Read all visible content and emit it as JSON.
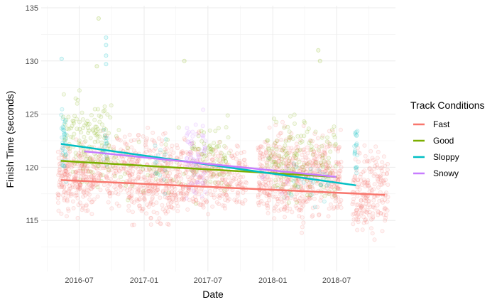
{
  "chart_data": {
    "type": "scatter",
    "title": "",
    "xlabel": "Date",
    "ylabel": "Finish Time (seconds)",
    "x_type": "date",
    "xlim": [
      "2016-03-15",
      "2018-12-15"
    ],
    "ylim": [
      110.2,
      135.2
    ],
    "x_ticks": [
      {
        "value": "2016-07-01",
        "label": "2016-07"
      },
      {
        "value": "2017-01-01",
        "label": "2017-01"
      },
      {
        "value": "2017-07-01",
        "label": "2017-07"
      },
      {
        "value": "2018-01-01",
        "label": "2018-01"
      },
      {
        "value": "2018-07-01",
        "label": "2018-07"
      }
    ],
    "y_ticks": [
      115,
      120,
      125,
      130,
      135
    ],
    "grid": true,
    "legend": {
      "title": "Track Conditions",
      "position": "right"
    },
    "series": [
      {
        "name": "Fast",
        "color": "#F8766D",
        "trend": {
          "x": [
            "2016-05-10",
            "2018-11-15"
          ],
          "y": [
            118.8,
            117.4
          ]
        },
        "point_groups": [
          {
            "x": [
              "2016-05-01",
              "2016-08-15"
            ],
            "y": [
              114.5,
              123.5
            ],
            "n": 260
          },
          {
            "x": [
              "2016-08-15",
              "2016-11-10"
            ],
            "y": [
              115.5,
              124.5
            ],
            "n": 120
          },
          {
            "x": [
              "2016-11-10",
              "2017-03-25"
            ],
            "y": [
              113.0,
              124.5
            ],
            "n": 320
          },
          {
            "x": [
              "2017-03-25",
              "2017-08-10"
            ],
            "y": [
              114.0,
              124.0
            ],
            "n": 240
          },
          {
            "x": [
              "2017-08-10",
              "2017-10-20"
            ],
            "y": [
              115.0,
              123.0
            ],
            "n": 110
          },
          {
            "x": [
              "2017-11-20",
              "2018-04-15"
            ],
            "y": [
              113.0,
              125.5
            ],
            "n": 360
          },
          {
            "x": [
              "2018-04-15",
              "2018-07-15"
            ],
            "y": [
              114.0,
              124.5
            ],
            "n": 200
          },
          {
            "x": [
              "2018-08-15",
              "2018-11-25"
            ],
            "y": [
              112.5,
              123.5
            ],
            "n": 200
          }
        ]
      },
      {
        "name": "Good",
        "color": "#7CAE00",
        "trend": {
          "x": [
            "2016-05-10",
            "2018-07-01"
          ],
          "y": [
            120.6,
            119.1
          ]
        },
        "point_groups": [
          {
            "x": [
              "2016-05-15",
              "2016-09-30"
            ],
            "y": [
              116.5,
              128.0
            ],
            "n": 140
          },
          {
            "x": [
              "2016-10-01",
              "2017-04-30"
            ],
            "y": [
              116.0,
              124.5
            ],
            "n": 45
          },
          {
            "x": [
              "2017-05-15",
              "2017-08-30"
            ],
            "y": [
              115.5,
              126.0
            ],
            "n": 80
          },
          {
            "x": [
              "2017-12-15",
              "2018-06-30"
            ],
            "y": [
              115.0,
              126.5
            ],
            "n": 150
          }
        ],
        "points": [
          {
            "x": "2016-08-25",
            "y": 134.0
          },
          {
            "x": "2016-08-20",
            "y": 129.5
          },
          {
            "x": "2017-04-25",
            "y": 130.0
          },
          {
            "x": "2018-05-10",
            "y": 131.0
          },
          {
            "x": "2018-05-15",
            "y": 130.0
          }
        ]
      },
      {
        "name": "Sloppy",
        "color": "#00BFC4",
        "trend": {
          "x": [
            "2016-05-10",
            "2018-08-25"
          ],
          "y": [
            122.2,
            118.3
          ]
        },
        "point_groups": [
          {
            "x": [
              "2016-05-10",
              "2016-05-25"
            ],
            "y": [
              117.0,
              128.0
            ],
            "n": 35
          },
          {
            "x": [
              "2016-09-05",
              "2016-09-20"
            ],
            "y": [
              119.0,
              124.5
            ],
            "n": 15
          },
          {
            "x": [
              "2017-02-01",
              "2017-03-15"
            ],
            "y": [
              117.0,
              124.0
            ],
            "n": 15
          },
          {
            "x": [
              "2018-02-15",
              "2018-06-10"
            ],
            "y": [
              115.5,
              122.5
            ],
            "n": 25
          },
          {
            "x": [
              "2018-08-20",
              "2018-08-30"
            ],
            "y": [
              116.5,
              126.0
            ],
            "n": 20
          }
        ],
        "points": [
          {
            "x": "2016-05-12",
            "y": 130.2
          },
          {
            "x": "2016-09-15",
            "y": 132.2
          },
          {
            "x": "2016-09-15",
            "y": 131.5
          },
          {
            "x": "2016-09-15",
            "y": 130.5
          },
          {
            "x": "2016-09-15",
            "y": 129.7
          }
        ]
      },
      {
        "name": "Snowy",
        "color": "#C77CFF",
        "trend": {
          "x": [
            "2016-07-15",
            "2018-06-30"
          ],
          "y": [
            121.5,
            119.1
          ]
        },
        "point_groups": [
          {
            "x": [
              "2017-05-01",
              "2017-06-25"
            ],
            "y": [
              115.0,
              126.5
            ],
            "n": 70
          },
          {
            "x": [
              "2017-12-01",
              "2018-02-15"
            ],
            "y": [
              116.0,
              122.0
            ],
            "n": 10
          }
        ]
      }
    ]
  }
}
